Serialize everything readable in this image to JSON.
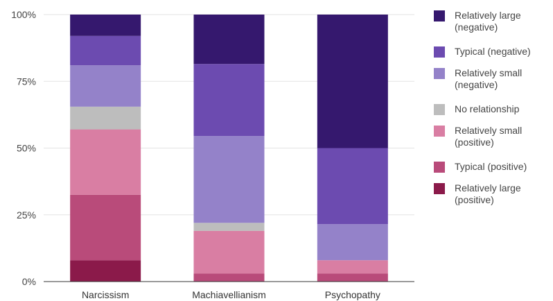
{
  "chart_data": {
    "type": "bar",
    "stacked": true,
    "normalized": true,
    "categories": [
      "Narcissism",
      "Machiavellianism",
      "Psychopathy"
    ],
    "y_ticks": [
      "0%",
      "25%",
      "50%",
      "75%",
      "100%"
    ],
    "ylim": [
      0,
      100
    ],
    "grid": true,
    "legend_position": "right",
    "series": [
      {
        "name": "Relatively large (positive)",
        "color": "#8b1a4a",
        "values": [
          8,
          0,
          0
        ]
      },
      {
        "name": "Typical (positive)",
        "color": "#b94b7a",
        "values": [
          24.5,
          3,
          3
        ]
      },
      {
        "name": "Relatively small (positive)",
        "color": "#d97ea3",
        "values": [
          24.5,
          16,
          5
        ]
      },
      {
        "name": "No relationship",
        "color": "#bdbdbd",
        "values": [
          8.5,
          3,
          0
        ]
      },
      {
        "name": "Relatively small (negative)",
        "color": "#9482c9",
        "values": [
          15.5,
          32.5,
          13.5
        ]
      },
      {
        "name": "Typical (negative)",
        "color": "#6c4bb0",
        "values": [
          11,
          27,
          28.5
        ]
      },
      {
        "name": "Relatively large (negative)",
        "color": "#35186e",
        "values": [
          8,
          18.5,
          50
        ]
      }
    ],
    "legend": [
      {
        "lines": [
          "Relatively large",
          "(negative)"
        ],
        "color": "#35186e"
      },
      {
        "lines": [
          "Typical (negative)"
        ],
        "color": "#6c4bb0"
      },
      {
        "lines": [
          "Relatively small",
          "(negative)"
        ],
        "color": "#9482c9"
      },
      {
        "lines": [
          "No relationship"
        ],
        "color": "#bdbdbd"
      },
      {
        "lines": [
          "Relatively small",
          "(positive)"
        ],
        "color": "#d97ea3"
      },
      {
        "lines": [
          "Typical (positive)"
        ],
        "color": "#b94b7a"
      },
      {
        "lines": [
          "Relatively large",
          "(positive)"
        ],
        "color": "#8b1a4a"
      }
    ]
  }
}
